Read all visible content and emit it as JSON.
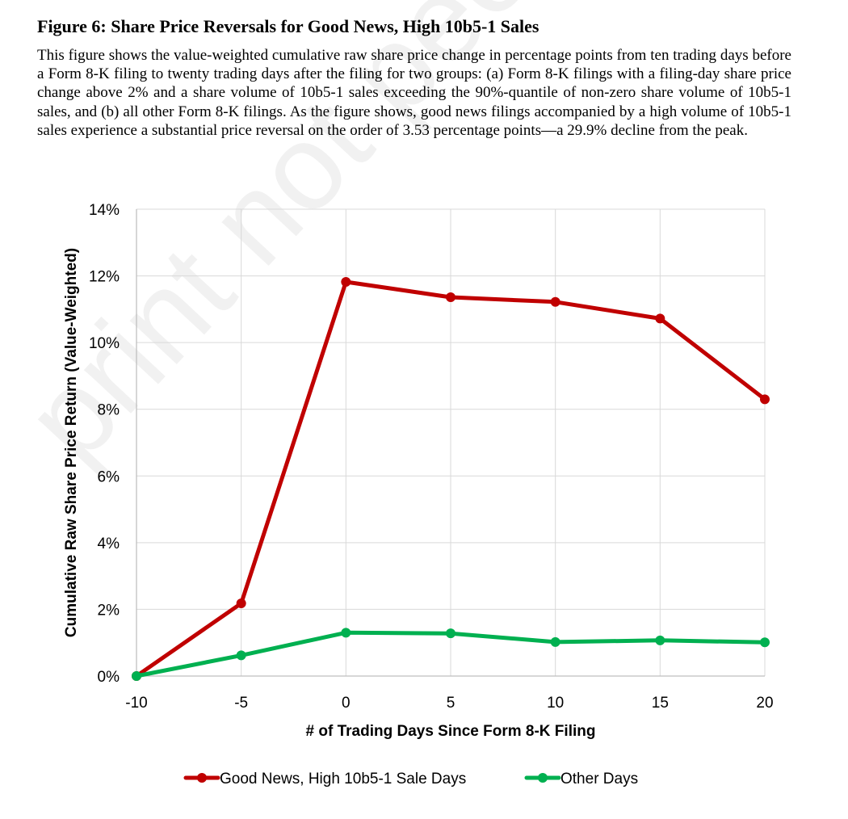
{
  "figure": {
    "title": "Figure 6: Share Price Reversals for Good News, High 10b5-1 Sales",
    "caption": "This figure shows the value-weighted cumulative raw share price change in percentage points from ten trading days before a Form 8-K filing to twenty trading days after the filing for two groups: (a) Form 8-K filings with a filing-day share price change above 2% and a share volume of 10b5-1 sales exceeding the 90%-quantile of non-zero share volume of 10b5-1 sales, and (b) all other Form 8-K filings.  As the figure shows, good news filings accompanied by a high volume of 10b5-1 sales experience a substantial price reversal on the order of 3.53 percentage points—a 29.9% decline from the peak."
  },
  "watermark": "print not peer reviewed",
  "chart_data": {
    "type": "line",
    "title": "",
    "xlabel": "# of Trading Days Since Form 8-K Filing",
    "ylabel": "Cumulative Raw Share Price Return (Value-Weighted)",
    "x": [
      -10,
      -5,
      0,
      5,
      10,
      15,
      20
    ],
    "xlim": [
      -10,
      20
    ],
    "ylim": [
      0,
      14
    ],
    "x_ticks": [
      -10,
      -5,
      0,
      5,
      10,
      15,
      20
    ],
    "y_ticks": [
      0,
      2,
      4,
      6,
      8,
      10,
      12,
      14
    ],
    "y_tick_labels": [
      "0%",
      "2%",
      "4%",
      "6%",
      "8%",
      "10%",
      "12%",
      "14%"
    ],
    "grid": true,
    "legend_position": "bottom",
    "series": [
      {
        "name": "Good News, High 10b5-1 Sale Days",
        "color": "#c00000",
        "values": [
          0,
          2.18,
          11.82,
          11.36,
          11.22,
          10.72,
          8.3
        ]
      },
      {
        "name": "Other Days",
        "color": "#00b050",
        "values": [
          0,
          0.62,
          1.3,
          1.28,
          1.02,
          1.07,
          1.01
        ]
      }
    ]
  }
}
